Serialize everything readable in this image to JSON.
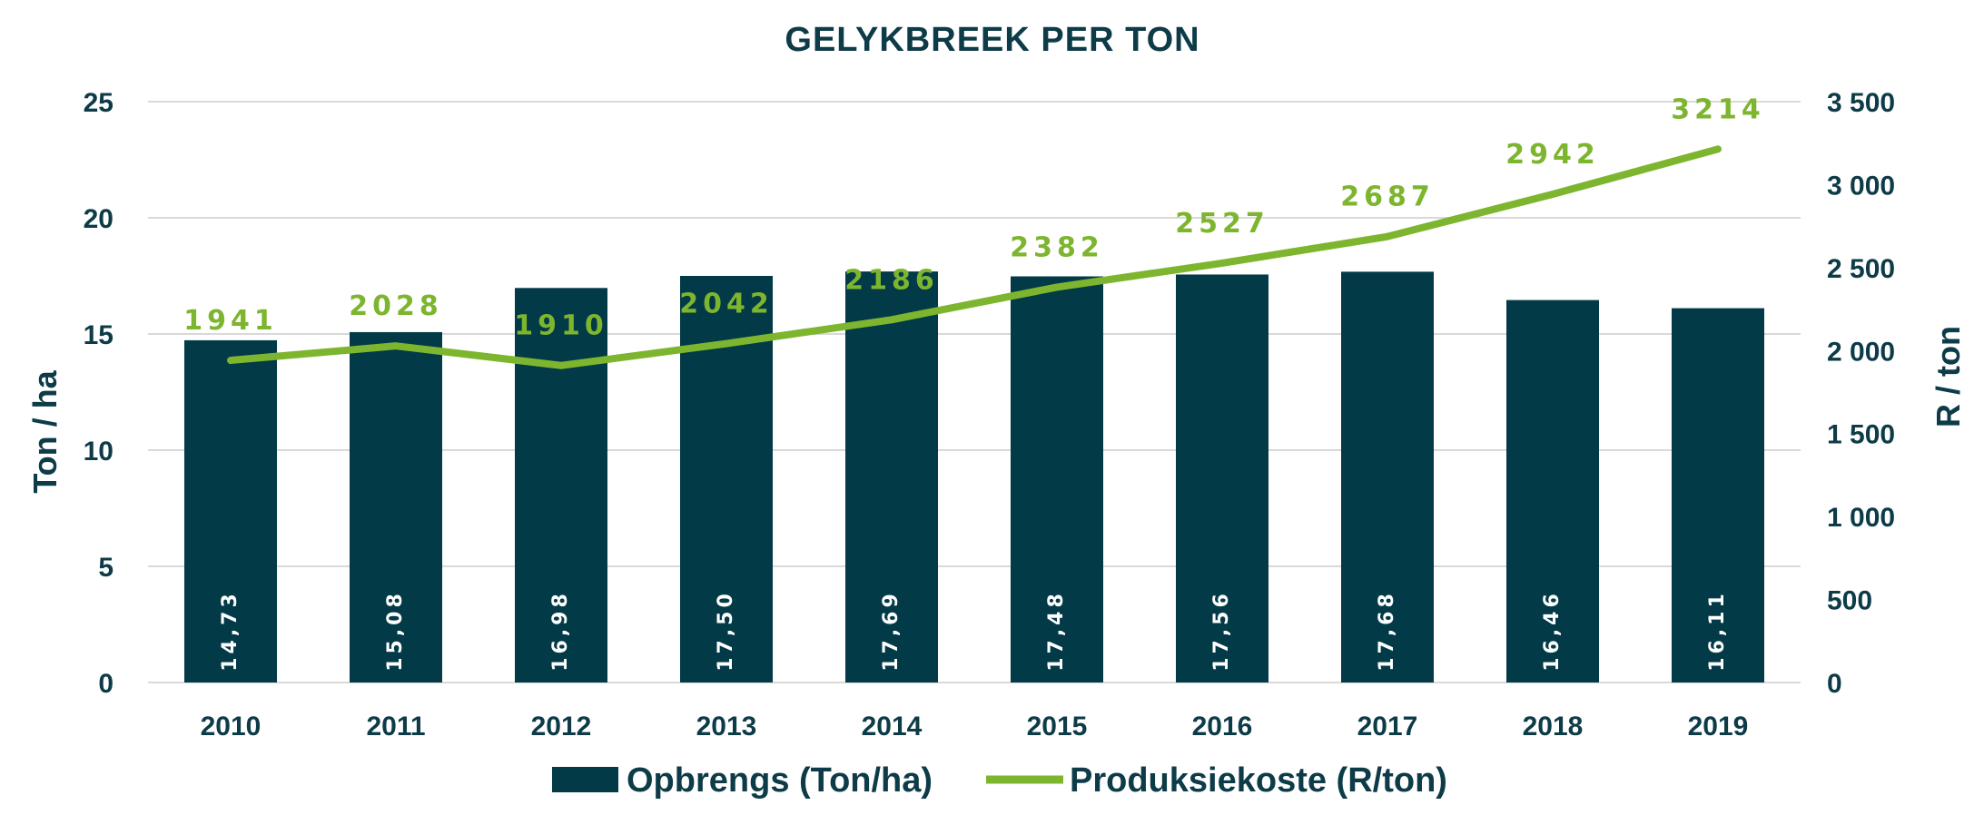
{
  "chart_data": {
    "type": "bar",
    "title": "GELYKBREEK PER TON",
    "categories": [
      "2010",
      "2011",
      "2012",
      "2013",
      "2014",
      "2015",
      "2016",
      "2017",
      "2018",
      "2019"
    ],
    "series": [
      {
        "name": "Opbrengs (Ton/ha)",
        "type": "bar",
        "axis": "left",
        "values": [
          14.73,
          15.08,
          16.98,
          17.5,
          17.69,
          17.48,
          17.56,
          17.68,
          16.46,
          16.11
        ],
        "labels": [
          "14,73",
          "15,08",
          "16,98",
          "17,50",
          "17,69",
          "17,48",
          "17,56",
          "17,68",
          "16,46",
          "16,11"
        ],
        "color": "#023a47"
      },
      {
        "name": "Produksiekoste (R/ton)",
        "type": "line",
        "axis": "right",
        "values": [
          1941,
          2028,
          1910,
          2042,
          2186,
          2382,
          2527,
          2687,
          2942,
          3214
        ],
        "labels": [
          "1941",
          "2028",
          "1910",
          "2042",
          "2186",
          "2382",
          "2527",
          "2687",
          "2942",
          "3214"
        ],
        "color": "#7db52f"
      }
    ],
    "ylabel": "Ton / ha",
    "y2label": "R / ton",
    "ylim": [
      0,
      25
    ],
    "y_ticks": [
      "0",
      "5",
      "10",
      "15",
      "20",
      "25"
    ],
    "y2lim": [
      0,
      3500
    ],
    "y2_ticks": [
      "0",
      "500",
      "1 000",
      "1 500",
      "2 000",
      "2 500",
      "3 000",
      "3 500"
    ],
    "grid": true,
    "legend_position": "bottom"
  }
}
